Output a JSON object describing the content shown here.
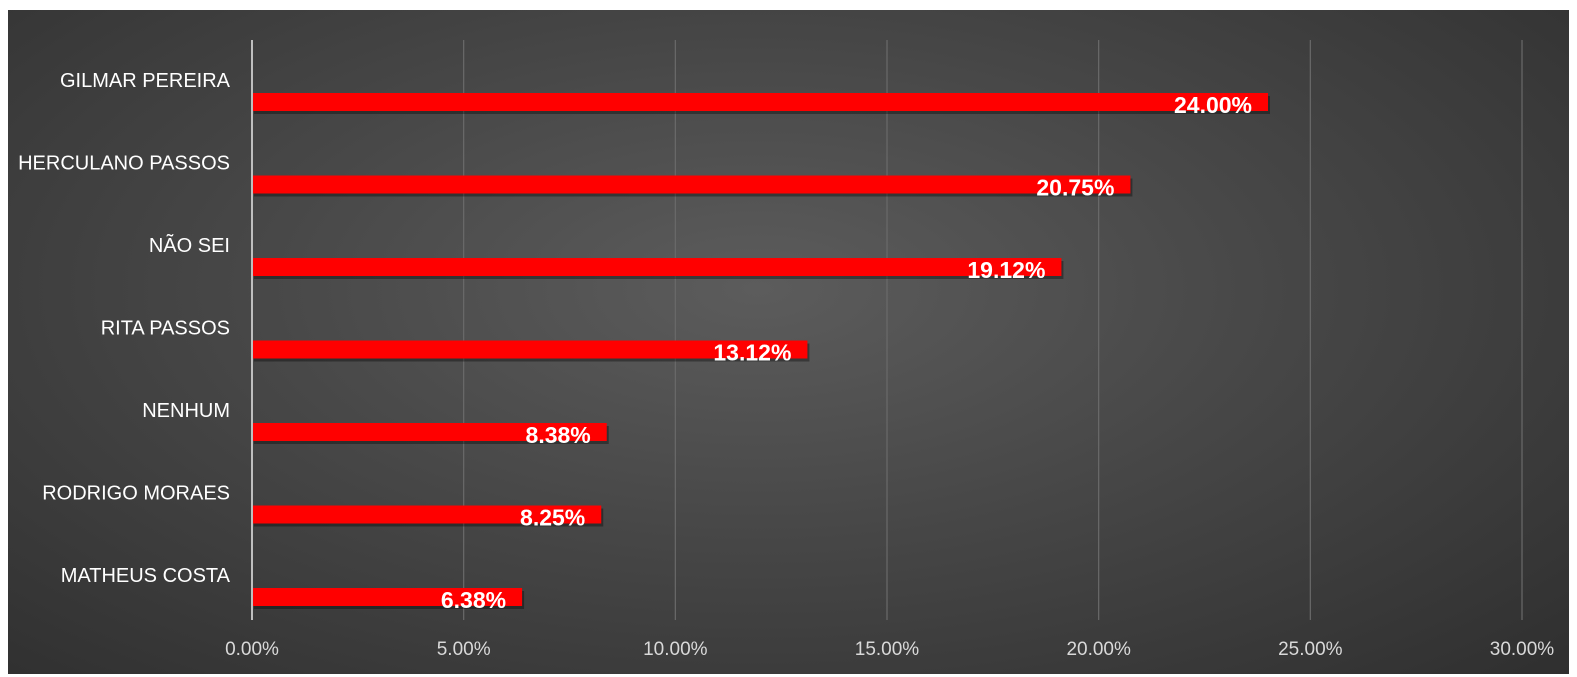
{
  "chart_data": {
    "type": "bar",
    "orientation": "horizontal",
    "categories": [
      "GILMAR PEREIRA",
      "HERCULANO PASSOS",
      "NÃO SEI",
      "RITA PASSOS",
      "NENHUM",
      "RODRIGO MORAES",
      "MATHEUS COSTA"
    ],
    "values": [
      24.0,
      20.75,
      19.12,
      13.12,
      8.38,
      8.25,
      6.38
    ],
    "value_labels": [
      "24.00%",
      "20.75%",
      "19.12%",
      "13.12%",
      "8.38%",
      "8.25%",
      "6.38%"
    ],
    "xlim": [
      0,
      30
    ],
    "x_ticks": [
      0,
      5,
      10,
      15,
      20,
      25,
      30
    ],
    "x_tick_labels": [
      "0.00%",
      "5.00%",
      "10.00%",
      "15.00%",
      "20.00%",
      "25.00%",
      "30.00%"
    ],
    "grid": "vertical",
    "legend": "none",
    "colors": {
      "bar": "#ff0000",
      "background": "#474747",
      "label": "#ffffff",
      "tick": "#d9d9d9"
    }
  }
}
